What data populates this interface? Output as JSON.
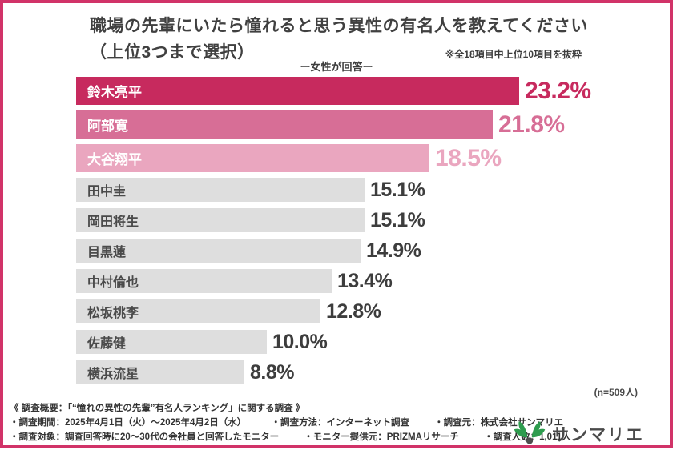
{
  "page": {
    "title_line1": "職場の先輩にいたら憧れると思う異性の有名人を教えてください",
    "title_line2": "（上位3つまで選択）",
    "note": "※全18項目中上位10項目を抜粋",
    "subtitle": "ー女性が回答ー",
    "sample_size": "(n=509人)"
  },
  "chart_data": {
    "type": "bar",
    "orientation": "horizontal",
    "title": "職場の先輩にいたら憧れると思う異性の有名人を教えてください（上位3つまで選択）",
    "subtitle": "ー女性が回答ー",
    "note": "※全18項目中上位10項目を抜粋",
    "sample_size": 509,
    "categories": [
      "鈴木亮平",
      "阿部寛",
      "大谷翔平",
      "田中圭",
      "岡田将生",
      "目黒蓮",
      "中村倫也",
      "松坂桃李",
      "佐藤健",
      "横浜流星"
    ],
    "values": [
      23.2,
      21.8,
      18.5,
      15.1,
      15.1,
      14.9,
      13.4,
      12.8,
      10.0,
      8.8
    ],
    "value_labels": [
      "23.2%",
      "21.8%",
      "18.5%",
      "15.1%",
      "15.1%",
      "14.9%",
      "13.4%",
      "12.8%",
      "10.0%",
      "8.8%"
    ],
    "bar_colors": [
      "#c72a5e",
      "#d76e96",
      "#eaa6bf",
      "#dedede",
      "#dedede",
      "#dedede",
      "#dedede",
      "#dedede",
      "#dedede",
      "#dedede"
    ],
    "label_colors": [
      "#ffffff",
      "#ffffff",
      "#ffffff",
      "#4a4a4a",
      "#4a4a4a",
      "#4a4a4a",
      "#4a4a4a",
      "#4a4a4a",
      "#4a4a4a",
      "#4a4a4a"
    ],
    "value_text_colors": [
      "#c72a5e",
      "#d76e96",
      "#eaa6bf",
      "#3d3d3d",
      "#3d3d3d",
      "#3d3d3d",
      "#3d3d3d",
      "#3d3d3d",
      "#3d3d3d",
      "#3d3d3d"
    ],
    "xlim": [
      0,
      23.2
    ],
    "highlight_top": 3,
    "legend": "none",
    "grid": false
  },
  "footer": {
    "line1": "《 調査概要：「“憧れの異性の先輩”有名人ランキング」に関する調査 》",
    "line2_items": [
      "・調査期間：2025年4月1日（火）～2025年4月2日（水）",
      "・調査方法：インターネット調査",
      "・調査元：株式会社サンマリエ"
    ],
    "line3_items": [
      "・調査対象：調査回答時に20～30代の会社員と回答したモニター",
      "・モニター提供元：PRIZMAリサーチ",
      "・調査人数：1,011人"
    ]
  },
  "logo": {
    "text": "サンマリエ",
    "icon": "leaf-pair-icon",
    "icon_green": "#2e9c4e",
    "dot_color": "#4f4f4f"
  },
  "colors": {
    "frame": "#d13368",
    "rank1": "#c72a5e",
    "rank2": "#d76e96",
    "rank3": "#eaa6bf",
    "default_bar": "#dedede",
    "title_text": "#404040"
  }
}
